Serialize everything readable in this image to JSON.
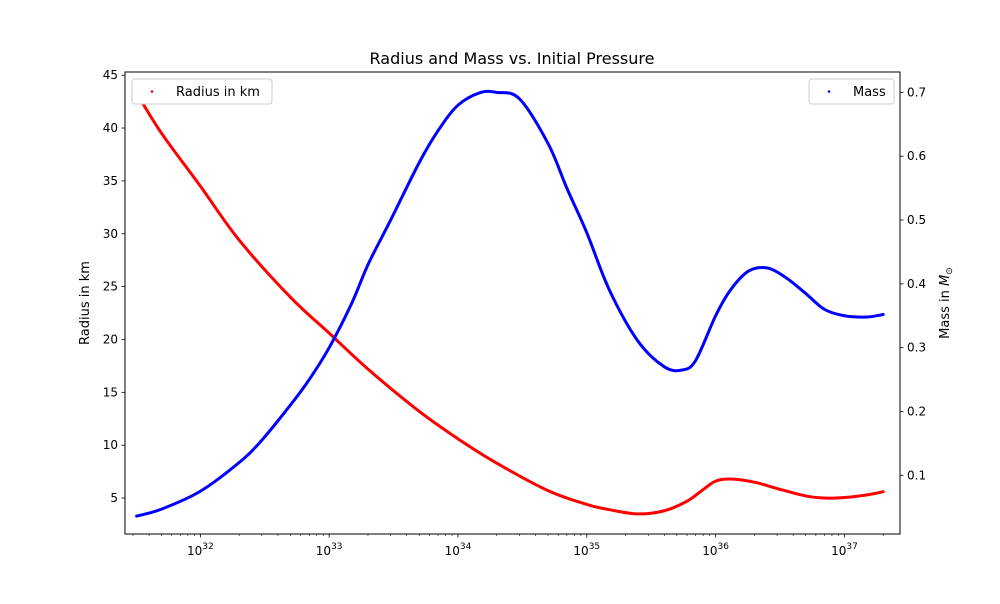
{
  "chart_data": {
    "type": "line",
    "title": "Radius and Mass vs. Initial Pressure",
    "xscale": "log",
    "xlim": [
      2.6e+31,
      2.7e+37
    ],
    "x_ticks": [
      {
        "value": 1e+32,
        "base": "10",
        "exp": "32"
      },
      {
        "value": 1e+33,
        "base": "10",
        "exp": "33"
      },
      {
        "value": 1e+34,
        "base": "10",
        "exp": "34"
      },
      {
        "value": 1e+35,
        "base": "10",
        "exp": "35"
      },
      {
        "value": 1e+36,
        "base": "10",
        "exp": "36"
      },
      {
        "value": 1e+37,
        "base": "10",
        "exp": "37"
      }
    ],
    "y_left": {
      "label": "Radius in km",
      "lim": [
        1.6,
        45.3
      ],
      "ticks": [
        "5",
        "10",
        "15",
        "20",
        "25",
        "30",
        "35",
        "40",
        "45"
      ]
    },
    "y_right": {
      "label_main": "Mass in ",
      "label_symbol": "M",
      "label_sub": "⊙",
      "lim": [
        0.008,
        0.732
      ],
      "ticks": [
        "0.1",
        "0.2",
        "0.3",
        "0.4",
        "0.5",
        "0.6",
        "0.7"
      ]
    },
    "grid": false,
    "series": [
      {
        "name": "Radius in km",
        "axis": "left",
        "color": "#ff0000",
        "legend_loc": "upper left",
        "x": [
          3.2e+31,
          5e+31,
          1e+32,
          2e+32,
          5e+32,
          1e+33,
          2e+33,
          5e+33,
          1e+34,
          2e+34,
          5e+34,
          1e+35,
          1.5e+35,
          2.5e+35,
          4e+35,
          6e+35,
          8e+35,
          1e+36,
          1.3e+36,
          2e+36,
          3e+36,
          5e+36,
          7e+36,
          1e+37,
          1.5e+37,
          2e+37
        ],
        "values": [
          43.3,
          39.5,
          34.5,
          29.4,
          24.0,
          20.6,
          17.2,
          13.2,
          10.6,
          8.3,
          5.7,
          4.4,
          3.9,
          3.5,
          3.8,
          4.7,
          5.8,
          6.6,
          6.8,
          6.5,
          5.9,
          5.2,
          5.0,
          5.05,
          5.3,
          5.6
        ]
      },
      {
        "name": "Mass",
        "axis": "right",
        "color": "#0000ff",
        "legend_loc": "upper right",
        "x": [
          3.2e+31,
          5e+31,
          1e+32,
          2e+32,
          3e+32,
          5e+32,
          7e+32,
          1e+33,
          1.5e+33,
          2e+33,
          3e+33,
          5e+33,
          7e+33,
          1e+34,
          1.5e+34,
          2e+34,
          3e+34,
          5e+34,
          7e+34,
          1e+35,
          1.5e+35,
          2.5e+35,
          4e+35,
          5.5e+35,
          7e+35,
          1e+36,
          1.3e+36,
          1.8e+36,
          2.5e+36,
          3.5e+36,
          5e+36,
          7e+36,
          1e+37,
          1.5e+37,
          2e+37
        ],
        "values": [
          0.036,
          0.047,
          0.075,
          0.12,
          0.155,
          0.21,
          0.25,
          0.3,
          0.37,
          0.43,
          0.5,
          0.59,
          0.64,
          0.68,
          0.7,
          0.7,
          0.69,
          0.62,
          0.55,
          0.48,
          0.39,
          0.31,
          0.27,
          0.265,
          0.28,
          0.35,
          0.39,
          0.42,
          0.425,
          0.41,
          0.385,
          0.36,
          0.35,
          0.348,
          0.352
        ]
      }
    ]
  }
}
